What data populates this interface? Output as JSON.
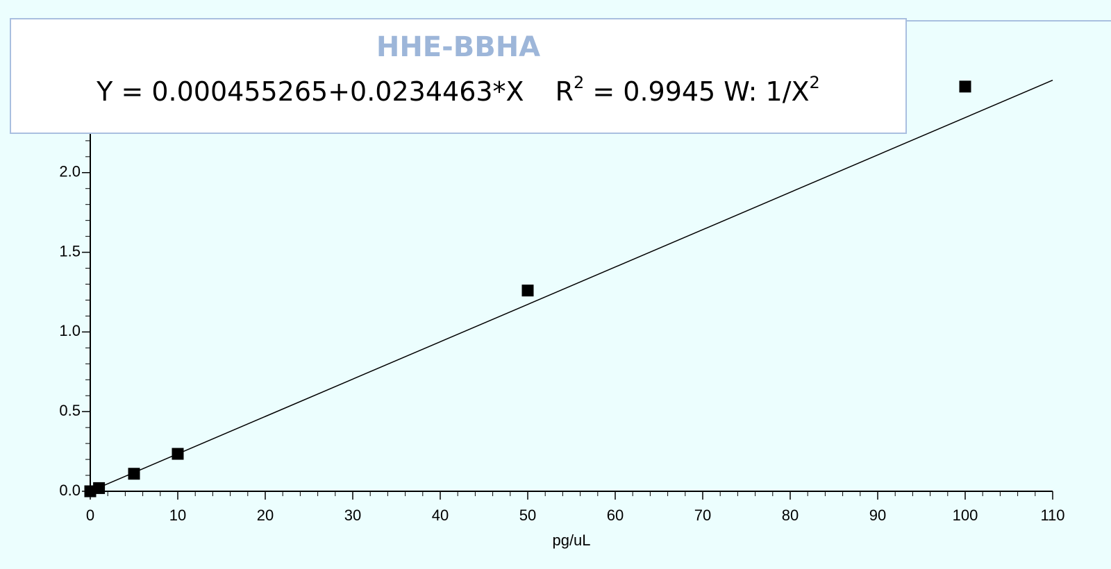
{
  "chart_data": {
    "type": "scatter",
    "title": "HHE-BBHA",
    "equation": "Y = 0.000455265+0.0234463*X",
    "fit_stats": {
      "r_label": "R",
      "r_exp": "2",
      "text": " = 0.9945 W: 1/X",
      "w_exp": "2"
    },
    "x_label": "pg/uL",
    "x": [
      0,
      1,
      5,
      10,
      50,
      100
    ],
    "values": [
      0.0,
      0.02,
      0.11,
      0.235,
      1.26,
      2.54
    ],
    "color": "#000000",
    "fit": {
      "x": [
        0,
        110
      ],
      "values": [
        0.0005,
        2.58
      ],
      "color": "#000000"
    },
    "xlim": [
      0,
      110
    ],
    "xticks": [
      0,
      10,
      20,
      30,
      40,
      50,
      60,
      70,
      80,
      90,
      100,
      110
    ],
    "ylim": [
      0,
      2.6
    ],
    "yticks": [
      {
        "value": 0,
        "label": "0.0"
      },
      {
        "value": 0.5,
        "label": "0.5"
      },
      {
        "value": 1,
        "label": "1.0"
      },
      {
        "value": 1.5,
        "label": "1.5"
      },
      {
        "value": 2,
        "label": "2.0"
      }
    ]
  }
}
